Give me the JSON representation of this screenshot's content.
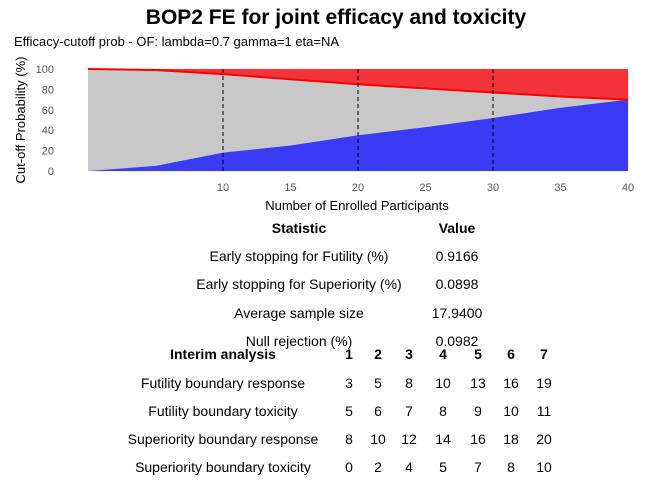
{
  "title": "BOP2 FE for joint efficacy and toxicity",
  "subtitle": "Efficacy-cutoff prob - OF: lambda=0.7 gamma=1 eta=NA",
  "colors": {
    "red": "#f2333a",
    "grey": "#c8c8c8",
    "blue": "#3b3bf5",
    "grid": "#e6e6e6"
  },
  "chart_data": {
    "type": "area",
    "title": "",
    "xlabel": "Number of Enrolled Participants",
    "ylabel": "Cut-off Probability (%)",
    "xlim": [
      0,
      40
    ],
    "ylim": [
      0,
      100
    ],
    "x_ticks": [
      10,
      15,
      20,
      25,
      30,
      35,
      40
    ],
    "y_ticks": [
      0,
      20,
      40,
      60,
      80,
      100
    ],
    "interim_lines": [
      10,
      20,
      30
    ],
    "x": [
      0,
      5,
      10,
      15,
      20,
      25,
      30,
      35,
      40
    ],
    "series": [
      {
        "values": [
          0,
          5,
          18,
          25,
          35,
          43,
          52,
          62,
          70
        ]
      },
      {
        "values": [
          100,
          99,
          95,
          90,
          85,
          81,
          77,
          73,
          70
        ]
      }
    ]
  },
  "stats": {
    "header_statistic": "Statistic",
    "header_value": "Value",
    "rows": [
      {
        "label": "Early stopping for Futility (%)",
        "value": "0.9166"
      },
      {
        "label": "Early stopping for Superiority (%)",
        "value": "0.0898"
      },
      {
        "label": "Average sample size",
        "value": "17.9400"
      },
      {
        "label": "Null rejection (%)",
        "value": "0.0982"
      }
    ]
  },
  "boundaries": {
    "header": "Interim analysis",
    "columns": [
      "1",
      "2",
      "3",
      "4",
      "5",
      "6",
      "7"
    ],
    "rows": [
      {
        "label": "Futility boundary response",
        "values": [
          "3",
          "5",
          "8",
          "10",
          "13",
          "16",
          "19"
        ]
      },
      {
        "label": "Futility boundary toxicity",
        "values": [
          "5",
          "6",
          "7",
          "8",
          "9",
          "10",
          "11"
        ]
      },
      {
        "label": "Superiority boundary response",
        "values": [
          "8",
          "10",
          "12",
          "14",
          "16",
          "18",
          "20"
        ]
      },
      {
        "label": "Superiority boundary toxicity",
        "values": [
          "0",
          "2",
          "4",
          "5",
          "7",
          "8",
          "10"
        ]
      }
    ]
  }
}
